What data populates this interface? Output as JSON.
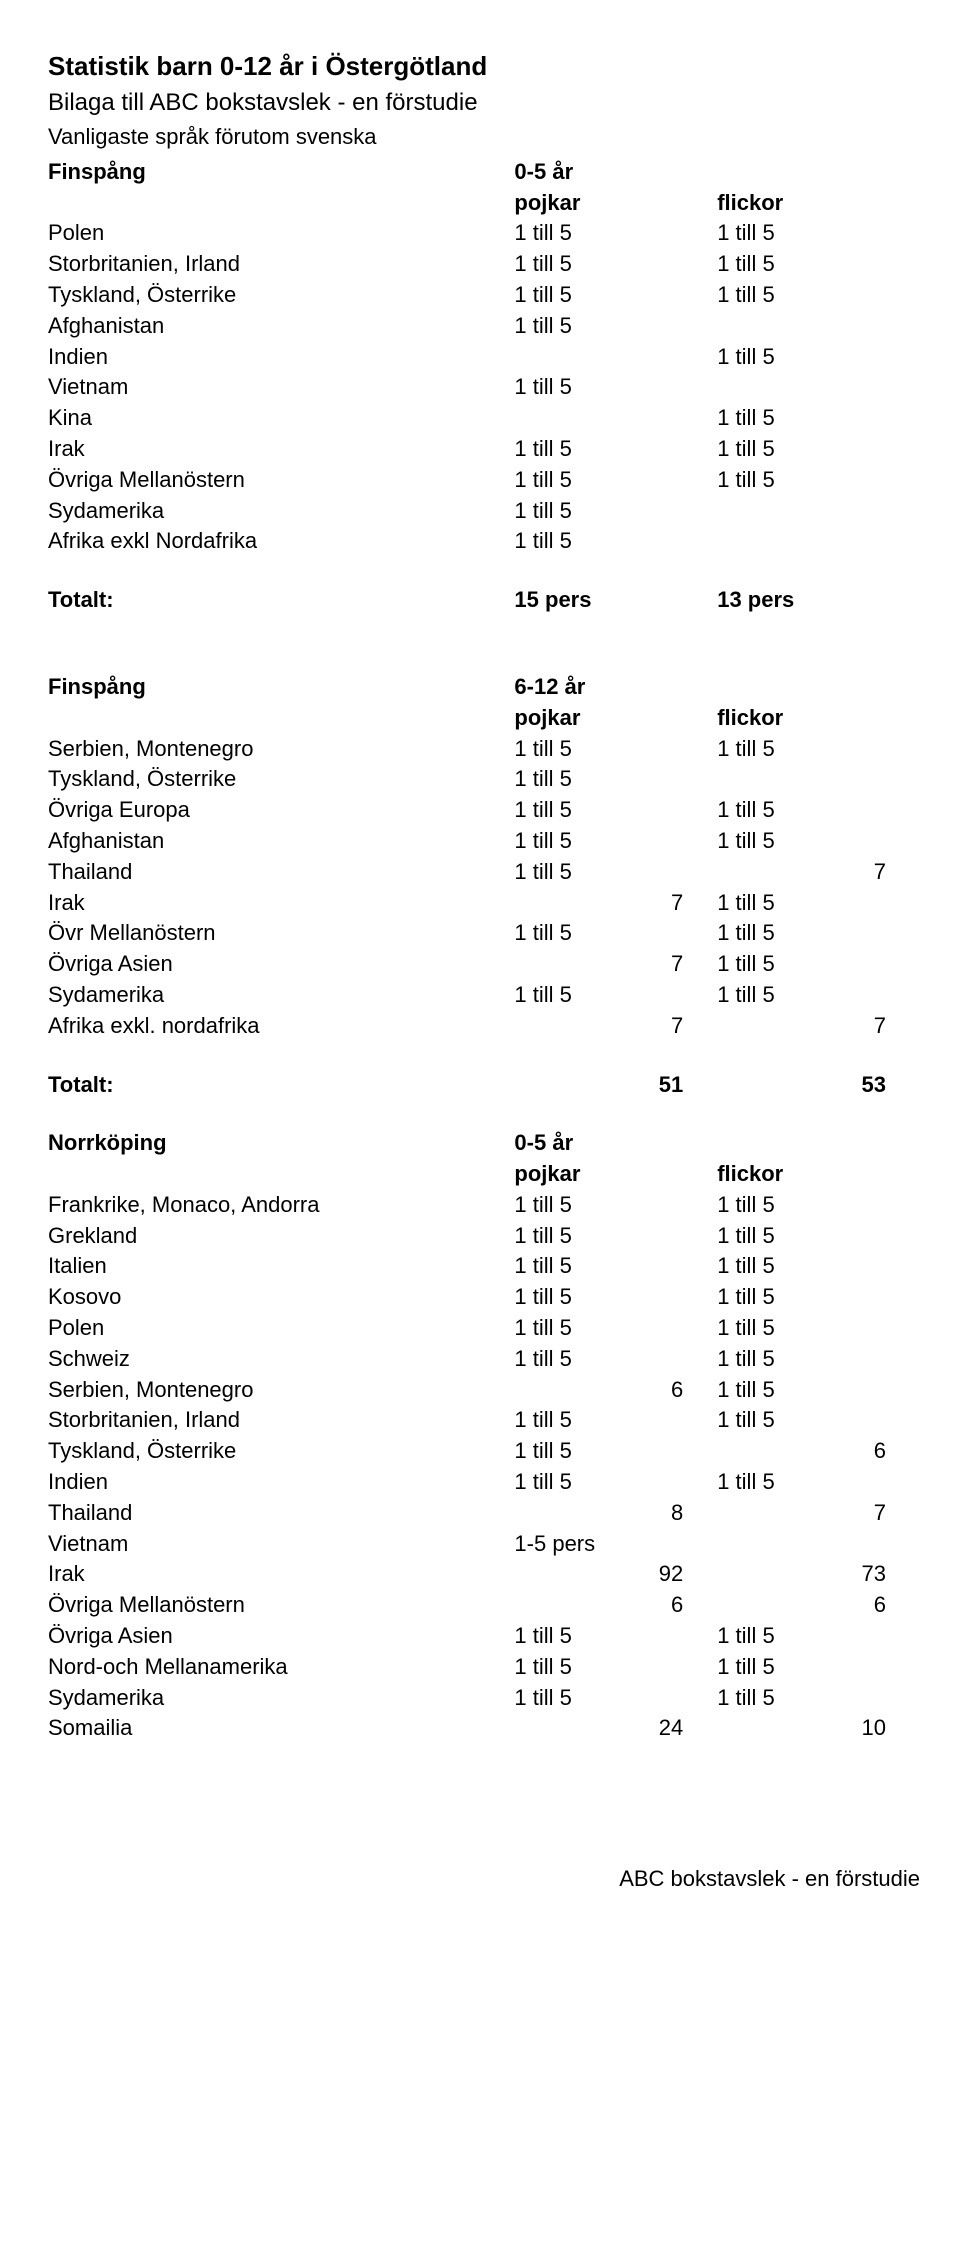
{
  "header": {
    "title": "Statistik barn 0-12 år i Östergötland",
    "subtitle": "Bilaga till ABC bokstavslek - en förstudie",
    "note": "Vanligaste språk förutom svenska"
  },
  "sections": {
    "finspang05": {
      "name": "Finspång",
      "age": "0-5 år",
      "col1": "pojkar",
      "col2": "flickor",
      "rows": [
        {
          "label": "Polen",
          "a": "1 till 5",
          "b": "1 till 5"
        },
        {
          "label": "Storbritanien, Irland",
          "a": "1 till 5",
          "b": "1 till 5"
        },
        {
          "label": "Tyskland, Österrike",
          "a": "1 till 5",
          "b": "1 till 5"
        },
        {
          "label": "Afghanistan",
          "a": "1 till 5",
          "b": ""
        },
        {
          "label": "Indien",
          "a": "",
          "b": "1 till 5"
        },
        {
          "label": "Vietnam",
          "a": "1 till 5",
          "b": ""
        },
        {
          "label": "Kina",
          "a": "",
          "b": "1 till 5"
        },
        {
          "label": "Irak",
          "a": "1 till 5",
          "b": "1 till 5"
        },
        {
          "label": "Övriga Mellanöstern",
          "a": "1 till 5",
          "b": "1 till 5"
        },
        {
          "label": "Sydamerika",
          "a": "1 till 5",
          "b": ""
        },
        {
          "label": "Afrika exkl Nordafrika",
          "a": "1 till 5",
          "b": ""
        }
      ],
      "total_label": "Totalt:",
      "total_a": "15 pers",
      "total_b": "13 pers"
    },
    "finspang612": {
      "name": "Finspång",
      "age": "6-12 år",
      "col1": "pojkar",
      "col2": "flickor",
      "rows": [
        {
          "label": "Serbien, Montenegro",
          "a": "1 till 5",
          "b": "1 till 5"
        },
        {
          "label": "Tyskland, Österrike",
          "a": "1 till 5",
          "b": ""
        },
        {
          "label": "Övriga Europa",
          "a": "1 till 5",
          "b": "1 till 5"
        },
        {
          "label": "Afghanistan",
          "a": "1 till 5",
          "b": "1 till 5"
        },
        {
          "label": "Thailand",
          "a": "1 till 5",
          "b": "7",
          "b_right": true
        },
        {
          "label": "Irak",
          "a": "7",
          "a_right": true,
          "b": "1 till 5"
        },
        {
          "label": "Övr Mellanöstern",
          "a": "1 till 5",
          "b": "1 till 5"
        },
        {
          "label": "Övriga Asien",
          "a": "7",
          "a_right": true,
          "b": "1 till 5"
        },
        {
          "label": "Sydamerika",
          "a": "1 till 5",
          "b": "1 till 5"
        },
        {
          "label": "Afrika exkl. nordafrika",
          "a": "7",
          "a_right": true,
          "b": "7",
          "b_right": true
        }
      ],
      "total_label": "Totalt:",
      "total_a": "51",
      "total_a_right": true,
      "total_b": "53",
      "total_b_right": true
    },
    "norrkoping05": {
      "name": "Norrköping",
      "age": "0-5 år",
      "col1": "pojkar",
      "col2": "flickor",
      "rows": [
        {
          "label": "Frankrike, Monaco, Andorra",
          "a": "1 till 5",
          "b": "1 till 5"
        },
        {
          "label": "Grekland",
          "a": "1 till 5",
          "b": "1 till 5"
        },
        {
          "label": "Italien",
          "a": "1 till 5",
          "b": "1 till 5"
        },
        {
          "label": "Kosovo",
          "a": "1 till 5",
          "b": "1 till 5"
        },
        {
          "label": "Polen",
          "a": "1 till 5",
          "b": "1 till 5"
        },
        {
          "label": "Schweiz",
          "a": "1 till 5",
          "b": "1 till 5"
        },
        {
          "label": "Serbien, Montenegro",
          "a": "6",
          "a_right": true,
          "b": "1 till 5"
        },
        {
          "label": "Storbritanien, Irland",
          "a": "1 till 5",
          "b": "1 till 5"
        },
        {
          "label": "Tyskland, Österrike",
          "a": "1 till 5",
          "b": "6",
          "b_right": true
        },
        {
          "label": "Indien",
          "a": "1 till 5",
          "b": "1 till 5"
        },
        {
          "label": "Thailand",
          "a": "8",
          "a_right": true,
          "b": "7",
          "b_right": true
        },
        {
          "label": "Vietnam",
          "a": "1-5 pers",
          "b": ""
        },
        {
          "label": "Irak",
          "a": "92",
          "a_right": true,
          "b": "73",
          "b_right": true
        },
        {
          "label": "Övriga Mellanöstern",
          "a": "6",
          "a_right": true,
          "b": "6",
          "b_right": true
        },
        {
          "label": "Övriga Asien",
          "a": "1 till 5",
          "b": "1 till 5"
        },
        {
          "label": "Nord-och Mellanamerika",
          "a": "1 till 5",
          "b": "1 till 5"
        },
        {
          "label": "Sydamerika",
          "a": "1 till 5",
          "b": "1 till 5"
        },
        {
          "label": "Somailia",
          "a": "24",
          "a_right": true,
          "b": "10",
          "b_right": true
        }
      ]
    }
  },
  "footer": "ABC bokstavslek - en förstudie"
}
